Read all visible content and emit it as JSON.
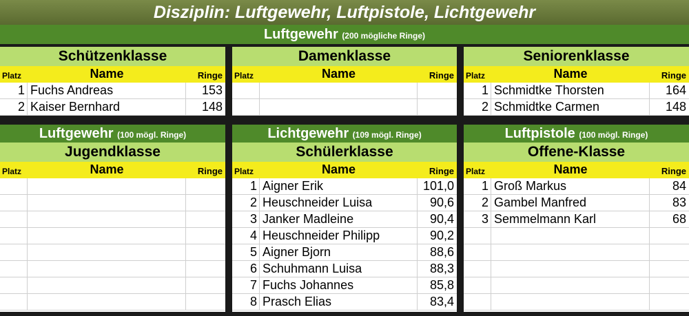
{
  "title": "Disziplin: Luftgewehr, Luftpistole, Lichtgewehr",
  "section_top": {
    "label": "Luftgewehr",
    "note": "(200 mögliche Ringe)"
  },
  "columns": {
    "platz": "Platz",
    "name": "Name",
    "ringe": "Ringe"
  },
  "panels": [
    {
      "klasse": "Schützenklasse",
      "rows": [
        {
          "platz": "1",
          "name": "Fuchs Andreas",
          "ringe": "153"
        },
        {
          "platz": "2",
          "name": "Kaiser Bernhard",
          "ringe": "148"
        }
      ]
    },
    {
      "klasse": "Damenklasse",
      "rows": [
        {
          "platz": "",
          "name": "",
          "ringe": ""
        },
        {
          "platz": "",
          "name": "",
          "ringe": ""
        }
      ]
    },
    {
      "klasse": "Seniorenklasse",
      "rows": [
        {
          "platz": "1",
          "name": "Schmidtke Thorsten",
          "ringe": "164"
        },
        {
          "platz": "2",
          "name": "Schmidtke Carmen",
          "ringe": "148"
        }
      ]
    },
    {
      "header": "Luftgewehr",
      "note": "(100 mögl. Ringe)",
      "klasse": "Jugendklasse",
      "rows": [
        {
          "platz": "",
          "name": "",
          "ringe": ""
        },
        {
          "platz": "",
          "name": "",
          "ringe": ""
        },
        {
          "platz": "",
          "name": "",
          "ringe": ""
        },
        {
          "platz": "",
          "name": "",
          "ringe": ""
        },
        {
          "platz": "",
          "name": "",
          "ringe": ""
        },
        {
          "platz": "",
          "name": "",
          "ringe": ""
        },
        {
          "platz": "",
          "name": "",
          "ringe": ""
        },
        {
          "platz": "",
          "name": "",
          "ringe": ""
        }
      ]
    },
    {
      "header": "Lichtgewehr",
      "note": "(109 mögl. Ringe)",
      "klasse": "Schülerklasse",
      "rows": [
        {
          "platz": "1",
          "name": "Aigner Erik",
          "ringe": "101,0"
        },
        {
          "platz": "2",
          "name": "Heuschneider Luisa",
          "ringe": "90,6"
        },
        {
          "platz": "3",
          "name": "Janker Madleine",
          "ringe": "90,4"
        },
        {
          "platz": "4",
          "name": "Heuschneider Philipp",
          "ringe": "90,2"
        },
        {
          "platz": "5",
          "name": "Aigner Bjorn",
          "ringe": "88,6"
        },
        {
          "platz": "6",
          "name": "Schuhmann Luisa",
          "ringe": "88,3"
        },
        {
          "platz": "7",
          "name": "Fuchs Johannes",
          "ringe": "85,8"
        },
        {
          "platz": "8",
          "name": "Prasch Elias",
          "ringe": "83,4"
        }
      ]
    },
    {
      "header": "Luftpistole",
      "note": "(100 mögl. Ringe)",
      "klasse": "Offene-Klasse",
      "rows": [
        {
          "platz": "1",
          "name": "Groß Markus",
          "ringe": "84"
        },
        {
          "platz": "2",
          "name": "Gambel Manfred",
          "ringe": "83"
        },
        {
          "platz": "3",
          "name": "Semmelmann Karl",
          "ringe": "68"
        },
        {
          "platz": "",
          "name": "",
          "ringe": ""
        },
        {
          "platz": "",
          "name": "",
          "ringe": ""
        },
        {
          "platz": "",
          "name": "",
          "ringe": ""
        },
        {
          "platz": "",
          "name": "",
          "ringe": ""
        },
        {
          "platz": "",
          "name": "",
          "ringe": ""
        }
      ]
    }
  ]
}
